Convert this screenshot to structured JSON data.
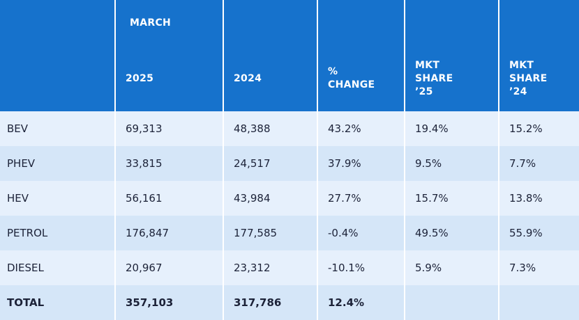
{
  "header": {
    "march": "MARCH",
    "columns": [
      "",
      "2025",
      "2024",
      "% CHANGE",
      "MKT SHARE ’25",
      "MKT SHARE ’24"
    ]
  },
  "table": {
    "rows": [
      [
        "BEV",
        "69,313",
        "48,388",
        "43.2%",
        "19.4%",
        "15.2%"
      ],
      [
        "PHEV",
        "33,815",
        "24,517",
        "37.9%",
        "9.5%",
        "7.7%"
      ],
      [
        "HEV",
        "56,161",
        "43,984",
        "27.7%",
        "15.7%",
        "13.8%"
      ],
      [
        "PETROL",
        "176,847",
        "177,585",
        "-0.4%",
        "49.5%",
        "55.9%"
      ],
      [
        "DIESEL",
        "20,967",
        "23,312",
        "-10.1%",
        "5.9%",
        "7.3%"
      ],
      [
        "TOTAL",
        "357,103",
        "317,786",
        "12.4%"
      ]
    ]
  }
}
